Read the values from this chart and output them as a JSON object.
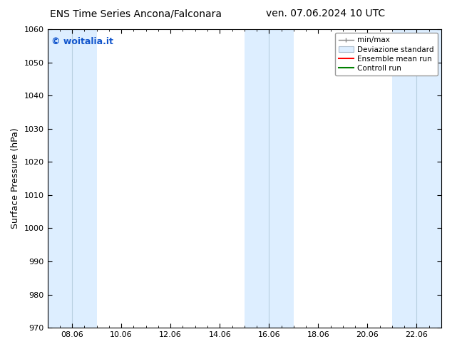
{
  "title_left": "ENS Time Series Ancona/Falconara",
  "title_right": "ven. 07.06.2024 10 UTC",
  "ylabel": "Surface Pressure (hPa)",
  "ylim": [
    970,
    1060
  ],
  "yticks": [
    970,
    980,
    990,
    1000,
    1010,
    1020,
    1030,
    1040,
    1050,
    1060
  ],
  "xtick_labels": [
    "08.06",
    "10.06",
    "12.06",
    "14.06",
    "16.06",
    "18.06",
    "20.06",
    "22.06"
  ],
  "xtick_positions": [
    2,
    6,
    10,
    14,
    18,
    22,
    26,
    30
  ],
  "xlim": [
    0,
    32
  ],
  "shaded_bands": [
    {
      "x_start": 0,
      "x_end": 4,
      "divider": 2
    },
    {
      "x_start": 16,
      "x_end": 20,
      "divider": 18
    },
    {
      "x_start": 28,
      "x_end": 32,
      "divider": 30
    }
  ],
  "band_color": "#ddeeff",
  "band_divider_color": "#b8cfe0",
  "copyright_text": "© woitalia.it",
  "copyright_color": "#1155cc",
  "bg_color": "#ffffff",
  "font_size_title": 10,
  "font_size_axis": 9,
  "font_size_tick": 8,
  "font_size_legend": 7.5,
  "font_size_copyright": 9
}
